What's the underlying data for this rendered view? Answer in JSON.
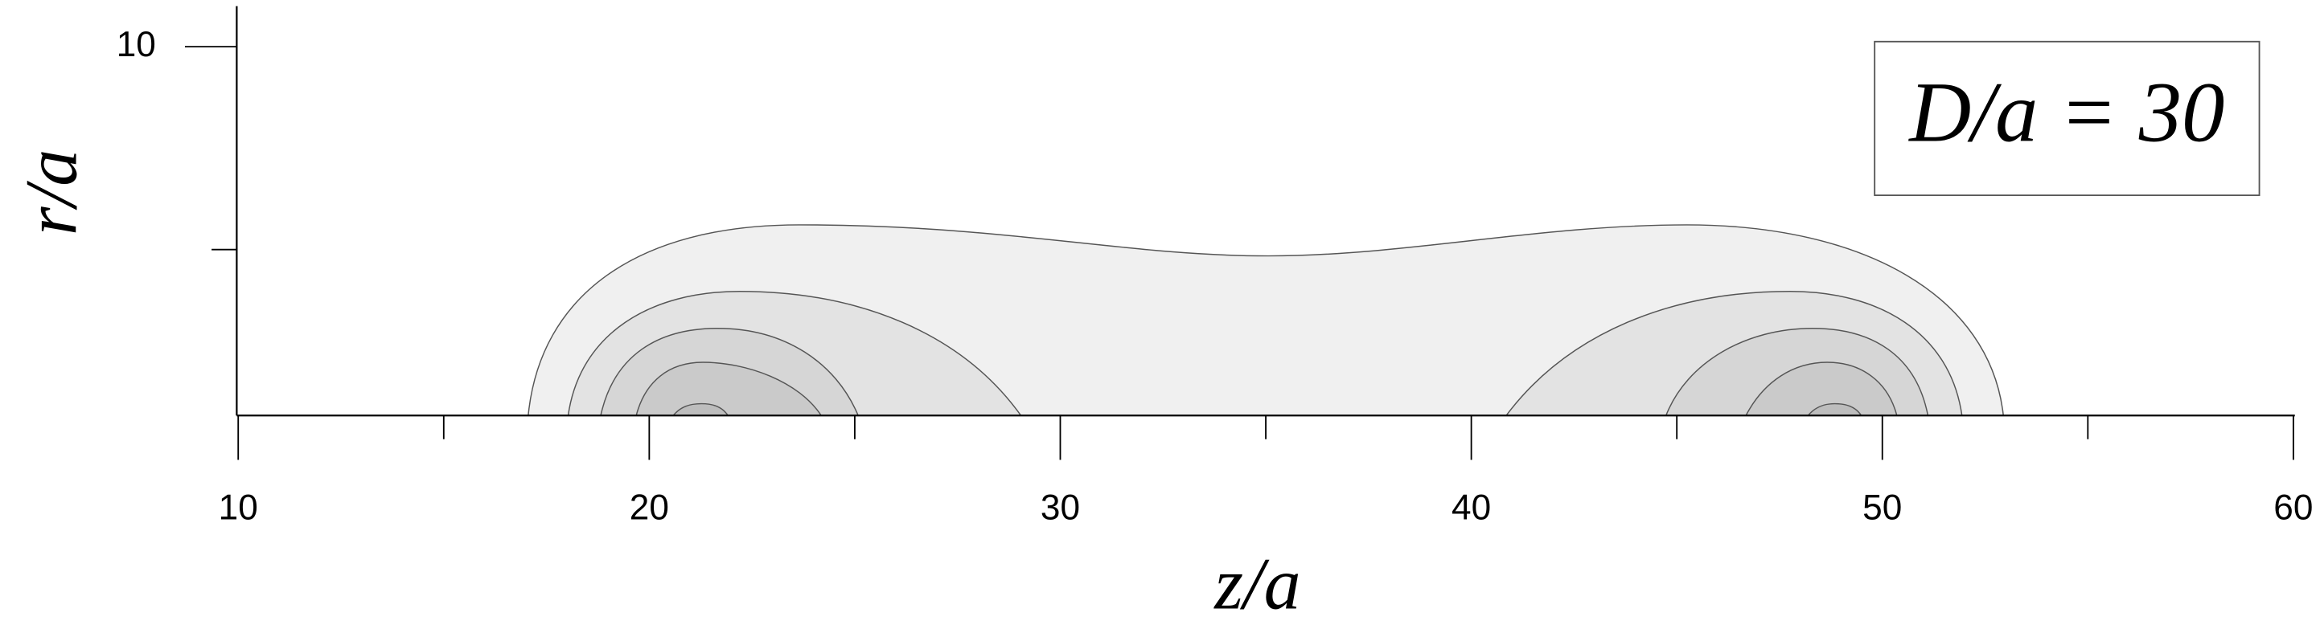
{
  "chart_data": {
    "type": "contour",
    "x_label": "z/a",
    "y_label": "r/a",
    "annotation": "D/a = 30",
    "xlim": [
      10,
      60
    ],
    "xticks": [
      10,
      20,
      30,
      40,
      50,
      60
    ],
    "xminor_ticks": [
      15,
      25,
      35,
      45,
      55
    ],
    "ylim": [
      0,
      11.1
    ],
    "yticks": [
      10
    ],
    "yminor_ticks": [
      4.5
    ]
  }
}
